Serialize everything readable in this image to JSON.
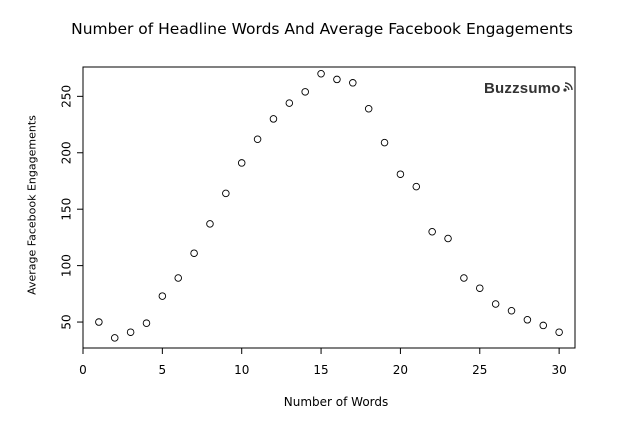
{
  "chart_data": {
    "type": "scatter",
    "title": "Number of Headline Words And Average Facebook Engagements",
    "xlabel": "Number of Words",
    "ylabel": "Average Facebook Engagements",
    "logo": "Buzzsumo",
    "xlim": [
      0,
      31
    ],
    "ylim": [
      27,
      276
    ],
    "xticks": [
      0,
      5,
      10,
      15,
      20,
      25,
      30
    ],
    "yticks": [
      50,
      100,
      150,
      200,
      250
    ],
    "grid": false,
    "points": [
      {
        "x": 1,
        "y": 50
      },
      {
        "x": 2,
        "y": 36
      },
      {
        "x": 3,
        "y": 41
      },
      {
        "x": 4,
        "y": 49
      },
      {
        "x": 5,
        "y": 73
      },
      {
        "x": 6,
        "y": 89
      },
      {
        "x": 7,
        "y": 111
      },
      {
        "x": 8,
        "y": 137
      },
      {
        "x": 9,
        "y": 164
      },
      {
        "x": 10,
        "y": 191
      },
      {
        "x": 11,
        "y": 212
      },
      {
        "x": 12,
        "y": 230
      },
      {
        "x": 13,
        "y": 244
      },
      {
        "x": 14,
        "y": 254
      },
      {
        "x": 15,
        "y": 270
      },
      {
        "x": 16,
        "y": 265
      },
      {
        "x": 17,
        "y": 262
      },
      {
        "x": 18,
        "y": 239
      },
      {
        "x": 19,
        "y": 209
      },
      {
        "x": 20,
        "y": 181
      },
      {
        "x": 21,
        "y": 170
      },
      {
        "x": 22,
        "y": 130
      },
      {
        "x": 23,
        "y": 124
      },
      {
        "x": 24,
        "y": 89
      },
      {
        "x": 25,
        "y": 80
      },
      {
        "x": 26,
        "y": 66
      },
      {
        "x": 27,
        "y": 60
      },
      {
        "x": 28,
        "y": 52
      },
      {
        "x": 29,
        "y": 47
      },
      {
        "x": 30,
        "y": 41
      }
    ]
  }
}
